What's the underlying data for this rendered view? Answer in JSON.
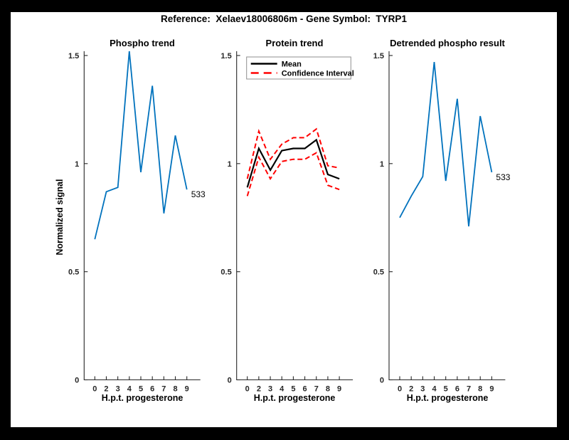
{
  "figure": {
    "title": "Reference:  Xelaev18006806m - Gene Symbol:  TYRP1",
    "background_color": "#ffffff",
    "frame_color": "#000000",
    "axis_color": "#262626",
    "accent_blue": "#0072BD",
    "accent_red": "#ff0000"
  },
  "chart_data": [
    {
      "id": "phospho-trend",
      "type": "line",
      "title": "Phospho trend",
      "xlabel": "H.p.t. progesterone",
      "ylabel": "Normalized signal",
      "x": [
        0,
        2,
        3,
        4,
        5,
        6,
        7,
        8,
        9
      ],
      "x_tick_labels": [
        "0",
        "2",
        "3",
        "4",
        "5",
        "6",
        "7",
        "8",
        "9"
      ],
      "y_ticks": [
        0,
        0.5,
        1,
        1.5
      ],
      "y_tick_labels": [
        "0",
        "0.5",
        "1",
        "1.5"
      ],
      "ylim": [
        0,
        1.52
      ],
      "grid": false,
      "series": [
        {
          "name": "phospho-signal",
          "color": "#0072BD",
          "style": "solid",
          "width": 1.8,
          "values": [
            0.65,
            0.87,
            0.89,
            1.52,
            0.96,
            1.36,
            0.77,
            1.13,
            0.88
          ]
        }
      ],
      "annotation": {
        "text": "533"
      }
    },
    {
      "id": "protein-trend",
      "type": "line",
      "title": "Protein trend",
      "xlabel": "H.p.t. progesterone",
      "ylabel": "Normalized signal",
      "x": [
        0,
        2,
        3,
        4,
        5,
        6,
        7,
        8,
        9
      ],
      "x_tick_labels": [
        "0",
        "2",
        "3",
        "4",
        "5",
        "6",
        "7",
        "8",
        "9"
      ],
      "y_ticks": [
        0,
        0.5,
        1,
        1.5
      ],
      "y_tick_labels": [
        "0",
        "0.5",
        "1",
        "1.5"
      ],
      "ylim": [
        0,
        1.52
      ],
      "grid": false,
      "legend": {
        "position": "northwest",
        "entries": [
          {
            "label": "Mean",
            "color": "#000000",
            "style": "solid"
          },
          {
            "label": "Confidence Interval",
            "color": "#ff0000",
            "style": "dashed"
          }
        ]
      },
      "series": [
        {
          "name": "mean",
          "color": "#000000",
          "style": "solid",
          "width": 2.2,
          "values": [
            0.89,
            1.07,
            0.97,
            1.06,
            1.07,
            1.07,
            1.11,
            0.95,
            0.93
          ]
        },
        {
          "name": "ci-upper",
          "color": "#ff0000",
          "style": "dashed",
          "width": 2,
          "values": [
            0.93,
            1.15,
            1.02,
            1.09,
            1.12,
            1.12,
            1.16,
            0.99,
            0.98
          ]
        },
        {
          "name": "ci-lower",
          "color": "#ff0000",
          "style": "dashed",
          "width": 2,
          "values": [
            0.85,
            1.03,
            0.93,
            1.01,
            1.02,
            1.02,
            1.05,
            0.9,
            0.88
          ]
        }
      ]
    },
    {
      "id": "detrended-phospho-result",
      "type": "line",
      "title": "Detrended phospho result",
      "xlabel": "H.p.t. progesterone",
      "ylabel": "Normalized signal",
      "x": [
        0,
        2,
        3,
        4,
        5,
        6,
        7,
        8,
        9
      ],
      "x_tick_labels": [
        "0",
        "2",
        "3",
        "4",
        "5",
        "6",
        "7",
        "8",
        "9"
      ],
      "y_ticks": [
        0,
        0.5,
        1,
        1.5
      ],
      "y_tick_labels": [
        "0",
        "0.5",
        "1",
        "1.5"
      ],
      "ylim": [
        0,
        1.52
      ],
      "grid": false,
      "series": [
        {
          "name": "detrended-signal",
          "color": "#0072BD",
          "style": "solid",
          "width": 1.8,
          "values": [
            0.75,
            0.85,
            0.94,
            1.47,
            0.92,
            1.3,
            0.71,
            1.22,
            0.96
          ]
        }
      ],
      "annotation": {
        "text": "533"
      }
    }
  ]
}
